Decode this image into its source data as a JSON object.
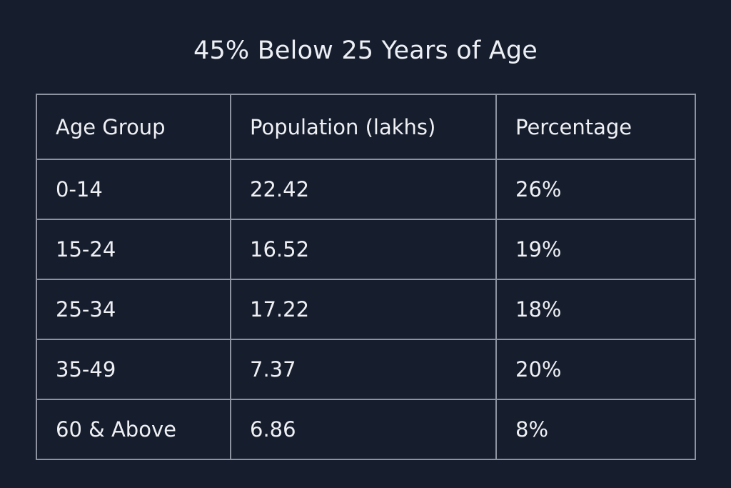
{
  "chart_data": {
    "type": "table",
    "title": "45% Below 25 Years of Age",
    "columns": [
      "Age Group",
      "Population (lakhs)",
      "Percentage"
    ],
    "rows": [
      [
        "0-14",
        "22.42",
        "26%"
      ],
      [
        "15-24",
        "16.52",
        "19%"
      ],
      [
        "25-34",
        "17.22",
        "18%"
      ],
      [
        "35-49",
        "7.37",
        "20%"
      ],
      [
        "60 & Above",
        "6.86",
        "8%"
      ]
    ],
    "colors": {
      "background": "#161d2d",
      "text": "#eef0f4",
      "grid": "#8e93a0"
    }
  }
}
